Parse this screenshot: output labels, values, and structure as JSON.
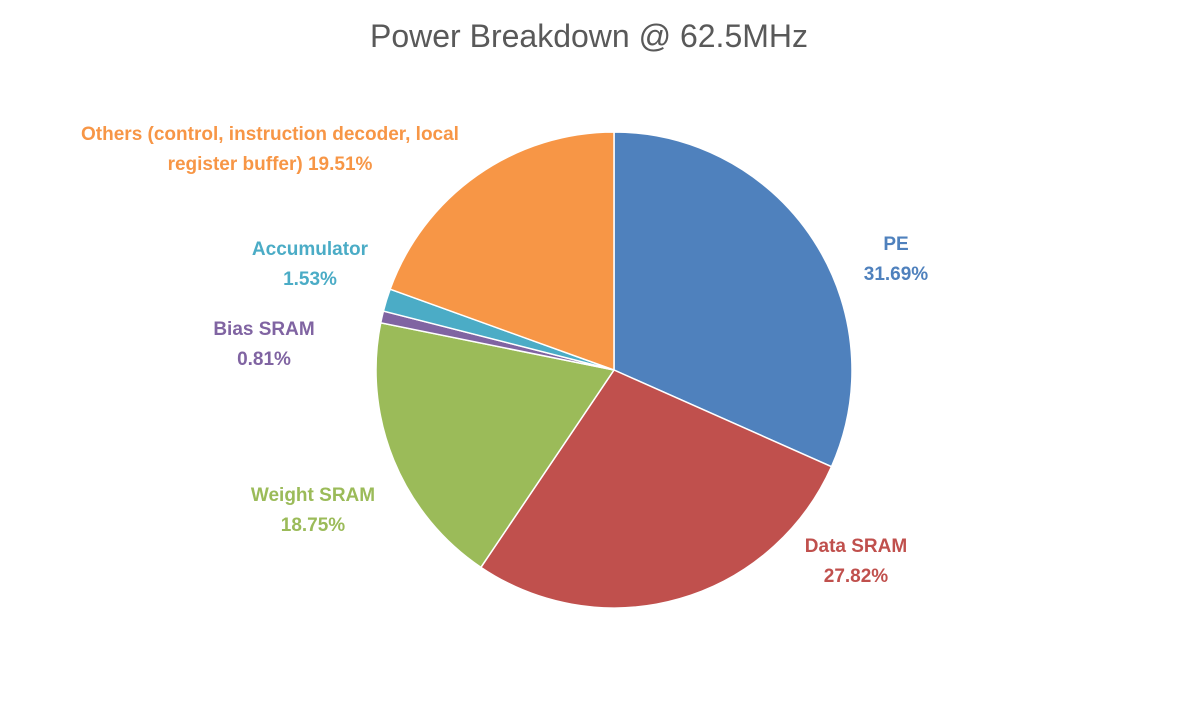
{
  "chart_data": {
    "type": "pie",
    "title": "Power Breakdown @ 62.5MHz",
    "categories": [
      "PE",
      "Data SRAM",
      "Weight SRAM",
      "Bias SRAM",
      "Accumulator",
      "Others (control, instruction decoder, local register buffer)"
    ],
    "values": [
      31.69,
      27.82,
      18.75,
      0.81,
      1.53,
      19.51
    ],
    "value_labels": [
      "31.69%",
      "27.82%",
      "18.75%",
      "0.81%",
      "1.53%",
      "19.51%"
    ],
    "colors": [
      "#4f81bd",
      "#c0504d",
      "#9bbb59",
      "#8064a2",
      "#4bacc6",
      "#f79646"
    ]
  }
}
